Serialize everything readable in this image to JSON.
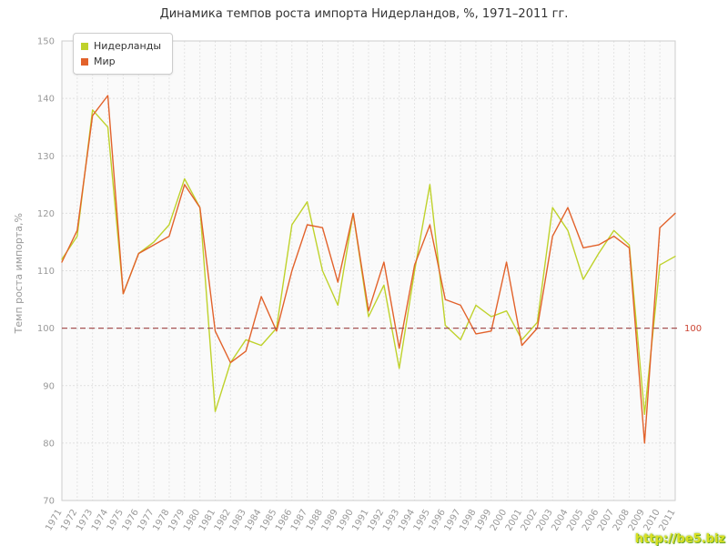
{
  "title": "Динамика темпов роста импорта Нидерландов, %, 1971–2011 гг.",
  "watermark": {
    "text": "http://be5.biz",
    "color": "#d9e021"
  },
  "legend": {
    "items": [
      {
        "label": "Нидерланды",
        "color": "#bfd22b"
      },
      {
        "label": "Мир",
        "color": "#e2622b"
      }
    ]
  },
  "chart_data": {
    "type": "line",
    "title": "Динамика темпов роста импорта Нидерландов, %, 1971–2011 гг.",
    "xlabel": "",
    "ylabel": "Темп роста импорта,%",
    "ylim": [
      70,
      150
    ],
    "yticks": [
      70,
      80,
      90,
      100,
      110,
      120,
      130,
      140,
      150
    ],
    "grid": true,
    "legend_position": "top-left",
    "reference_line": {
      "value": 100,
      "label": "100",
      "color": "#a65353",
      "label_color": "#cc4433"
    },
    "categories": [
      "1971",
      "1972",
      "1973",
      "1974",
      "1975",
      "1976",
      "1977",
      "1978",
      "1979",
      "1980",
      "1981",
      "1982",
      "1983",
      "1984",
      "1985",
      "1986",
      "1987",
      "1988",
      "1989",
      "1990",
      "1991",
      "1992",
      "1993",
      "1994",
      "1995",
      "1996",
      "1997",
      "1998",
      "1999",
      "2000",
      "2001",
      "2002",
      "2003",
      "2004",
      "2005",
      "2006",
      "2007",
      "2008",
      "2009",
      "2010",
      "2011"
    ],
    "series": [
      {
        "name": "Нидерланды",
        "color": "#bfd22b",
        "values": [
          112,
          116,
          138,
          135,
          106,
          113,
          115,
          118,
          126,
          121,
          85.5,
          94,
          98,
          97,
          100,
          118,
          122,
          110,
          104,
          120,
          102,
          107.5,
          93,
          110,
          125,
          100.5,
          98,
          104,
          102,
          103,
          98,
          101,
          121,
          117,
          108.5,
          113,
          117,
          114.5,
          85,
          111,
          112.5
        ]
      },
      {
        "name": "Мир",
        "color": "#e2622b",
        "values": [
          111.5,
          117,
          137,
          140.5,
          106,
          113,
          114.5,
          116,
          125,
          121,
          99.5,
          94,
          96,
          105.5,
          99.5,
          110,
          118,
          117.5,
          108,
          120,
          103,
          111.5,
          96.5,
          111,
          118,
          105,
          104,
          99,
          99.5,
          111.5,
          97,
          100,
          116,
          121,
          114,
          114.5,
          116,
          114,
          80,
          117.5,
          120
        ]
      }
    ]
  }
}
